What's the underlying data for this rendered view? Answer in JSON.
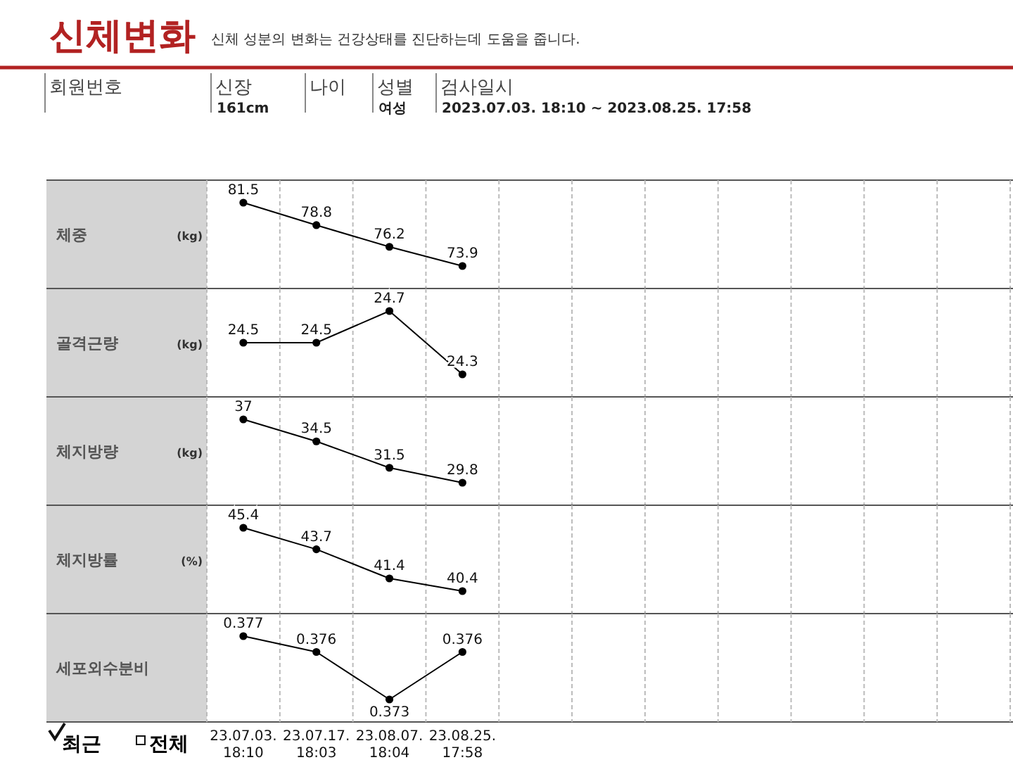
{
  "chart_data": [
    {
      "type": "line",
      "title": "신체변화",
      "subtitle": "신체 성분의 변화는 건강상태를 진단하는데 도움을 줍니다.",
      "annotations": [
        "회원번호",
        "신장",
        "161cm",
        "나이",
        "성별",
        "여성",
        "검사일시",
        "2023.07.03. 18:10 ~ 2023.08.25. 17:58",
        "(kg)"
      ],
      "ylabel": "체중",
      "categories": [
        null,
        null,
        null,
        null,
        null,
        null,
        null,
        null,
        null,
        null,
        null
      ],
      "series": [
        {
          "color": "#000000",
          "values": [
            81.5,
            78.8,
            76.2,
            73.9,
            null,
            null,
            null,
            null,
            null,
            null,
            null
          ]
        }
      ],
      "data_labels": true,
      "marker": "circle",
      "grid": "x",
      "tick_labels": false
    },
    {
      "type": "line",
      "ylabel": "골격근량",
      "annotations": [
        "(kg)"
      ],
      "categories": [
        null,
        null,
        null,
        null,
        null,
        null,
        null,
        null,
        null,
        null,
        null
      ],
      "series": [
        {
          "color": "#000000",
          "values": [
            24.5,
            24.5,
            24.7,
            24.3,
            null,
            null,
            null,
            null,
            null,
            null,
            null
          ]
        }
      ],
      "data_labels": true,
      "marker": "circle",
      "grid": "x",
      "tick_labels": false
    },
    {
      "type": "line",
      "ylabel": "체지방량",
      "annotations": [
        "(kg)"
      ],
      "categories": [
        null,
        null,
        null,
        null,
        null,
        null,
        null,
        null,
        null,
        null,
        null
      ],
      "series": [
        {
          "color": "#000000",
          "values": [
            37.0,
            34.5,
            31.5,
            29.8,
            null,
            null,
            null,
            null,
            null,
            null,
            null
          ]
        }
      ],
      "data_labels": true,
      "marker": "circle",
      "grid": "x",
      "tick_labels": false
    },
    {
      "type": "line",
      "ylabel": "체지방률",
      "annotations": [
        "(%)"
      ],
      "categories": [
        null,
        null,
        null,
        null,
        null,
        null,
        null,
        null,
        null,
        null,
        null
      ],
      "series": [
        {
          "color": "#000000",
          "values": [
            45.4,
            43.7,
            41.4,
            40.4,
            null,
            null,
            null,
            null,
            null,
            null,
            null
          ]
        }
      ],
      "data_labels": true,
      "marker": "circle",
      "grid": "x",
      "tick_labels": false
    },
    {
      "type": "line",
      "ylabel": "세포외수분비",
      "annotations": [
        "최근",
        "전체"
      ],
      "categories": [
        "23.07.03.\n18:10",
        "23.07.17.\n18:03",
        "23.08.07.\n18:04",
        "23.08.25.\n17:58",
        null,
        null,
        null,
        null,
        null,
        null,
        null
      ],
      "series": [
        {
          "color": "#000000",
          "values": [
            0.377,
            0.376,
            0.373,
            0.376,
            null,
            null,
            null,
            null,
            null,
            null,
            null
          ],
          "value_labels": [
            "0.377",
            "0.376",
            "0.373",
            "0.376",
            null,
            null,
            null,
            null,
            null,
            null,
            null
          ]
        }
      ],
      "marker": "circle",
      "grid": "x",
      "tick_labels": "x"
    }
  ]
}
